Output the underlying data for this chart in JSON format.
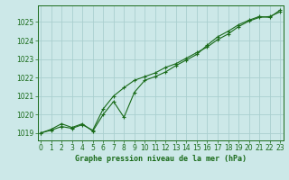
{
  "title": "Graphe pression niveau de la mer (hPa)",
  "background_color": "#cce8e8",
  "grid_color": "#aacfcf",
  "line_color": "#1a6b1a",
  "xlim": [
    -0.3,
    23.3
  ],
  "ylim": [
    1018.6,
    1025.9
  ],
  "xticks": [
    0,
    1,
    2,
    3,
    4,
    5,
    6,
    7,
    8,
    9,
    10,
    11,
    12,
    13,
    14,
    15,
    16,
    17,
    18,
    19,
    20,
    21,
    22,
    23
  ],
  "yticks": [
    1019,
    1020,
    1021,
    1022,
    1023,
    1024,
    1025
  ],
  "series1_x": [
    0,
    1,
    2,
    3,
    4,
    5,
    6,
    7,
    8,
    9,
    10,
    11,
    12,
    13,
    14,
    15,
    16,
    17,
    18,
    19,
    20,
    21,
    22,
    23
  ],
  "series1_y": [
    1019.0,
    1019.15,
    1019.35,
    1019.25,
    1019.45,
    1019.15,
    1020.3,
    1021.0,
    1021.45,
    1021.85,
    1022.05,
    1022.25,
    1022.55,
    1022.75,
    1023.05,
    1023.35,
    1023.65,
    1024.05,
    1024.35,
    1024.75,
    1025.05,
    1025.25,
    1025.3,
    1025.55
  ],
  "series2_x": [
    0,
    1,
    2,
    3,
    4,
    5,
    6,
    7,
    8,
    9,
    10,
    11,
    12,
    13,
    14,
    15,
    16,
    17,
    18,
    19,
    20,
    21,
    22,
    23
  ],
  "series2_y": [
    1019.0,
    1019.2,
    1019.5,
    1019.3,
    1019.5,
    1019.1,
    1020.0,
    1020.7,
    1019.85,
    1021.2,
    1021.85,
    1022.05,
    1022.3,
    1022.65,
    1022.95,
    1023.25,
    1023.75,
    1024.2,
    1024.5,
    1024.85,
    1025.1,
    1025.3,
    1025.25,
    1025.65
  ],
  "tick_fontsize": 5.5,
  "label_fontsize": 6.0,
  "linewidth": 0.8,
  "markersize": 2.5
}
